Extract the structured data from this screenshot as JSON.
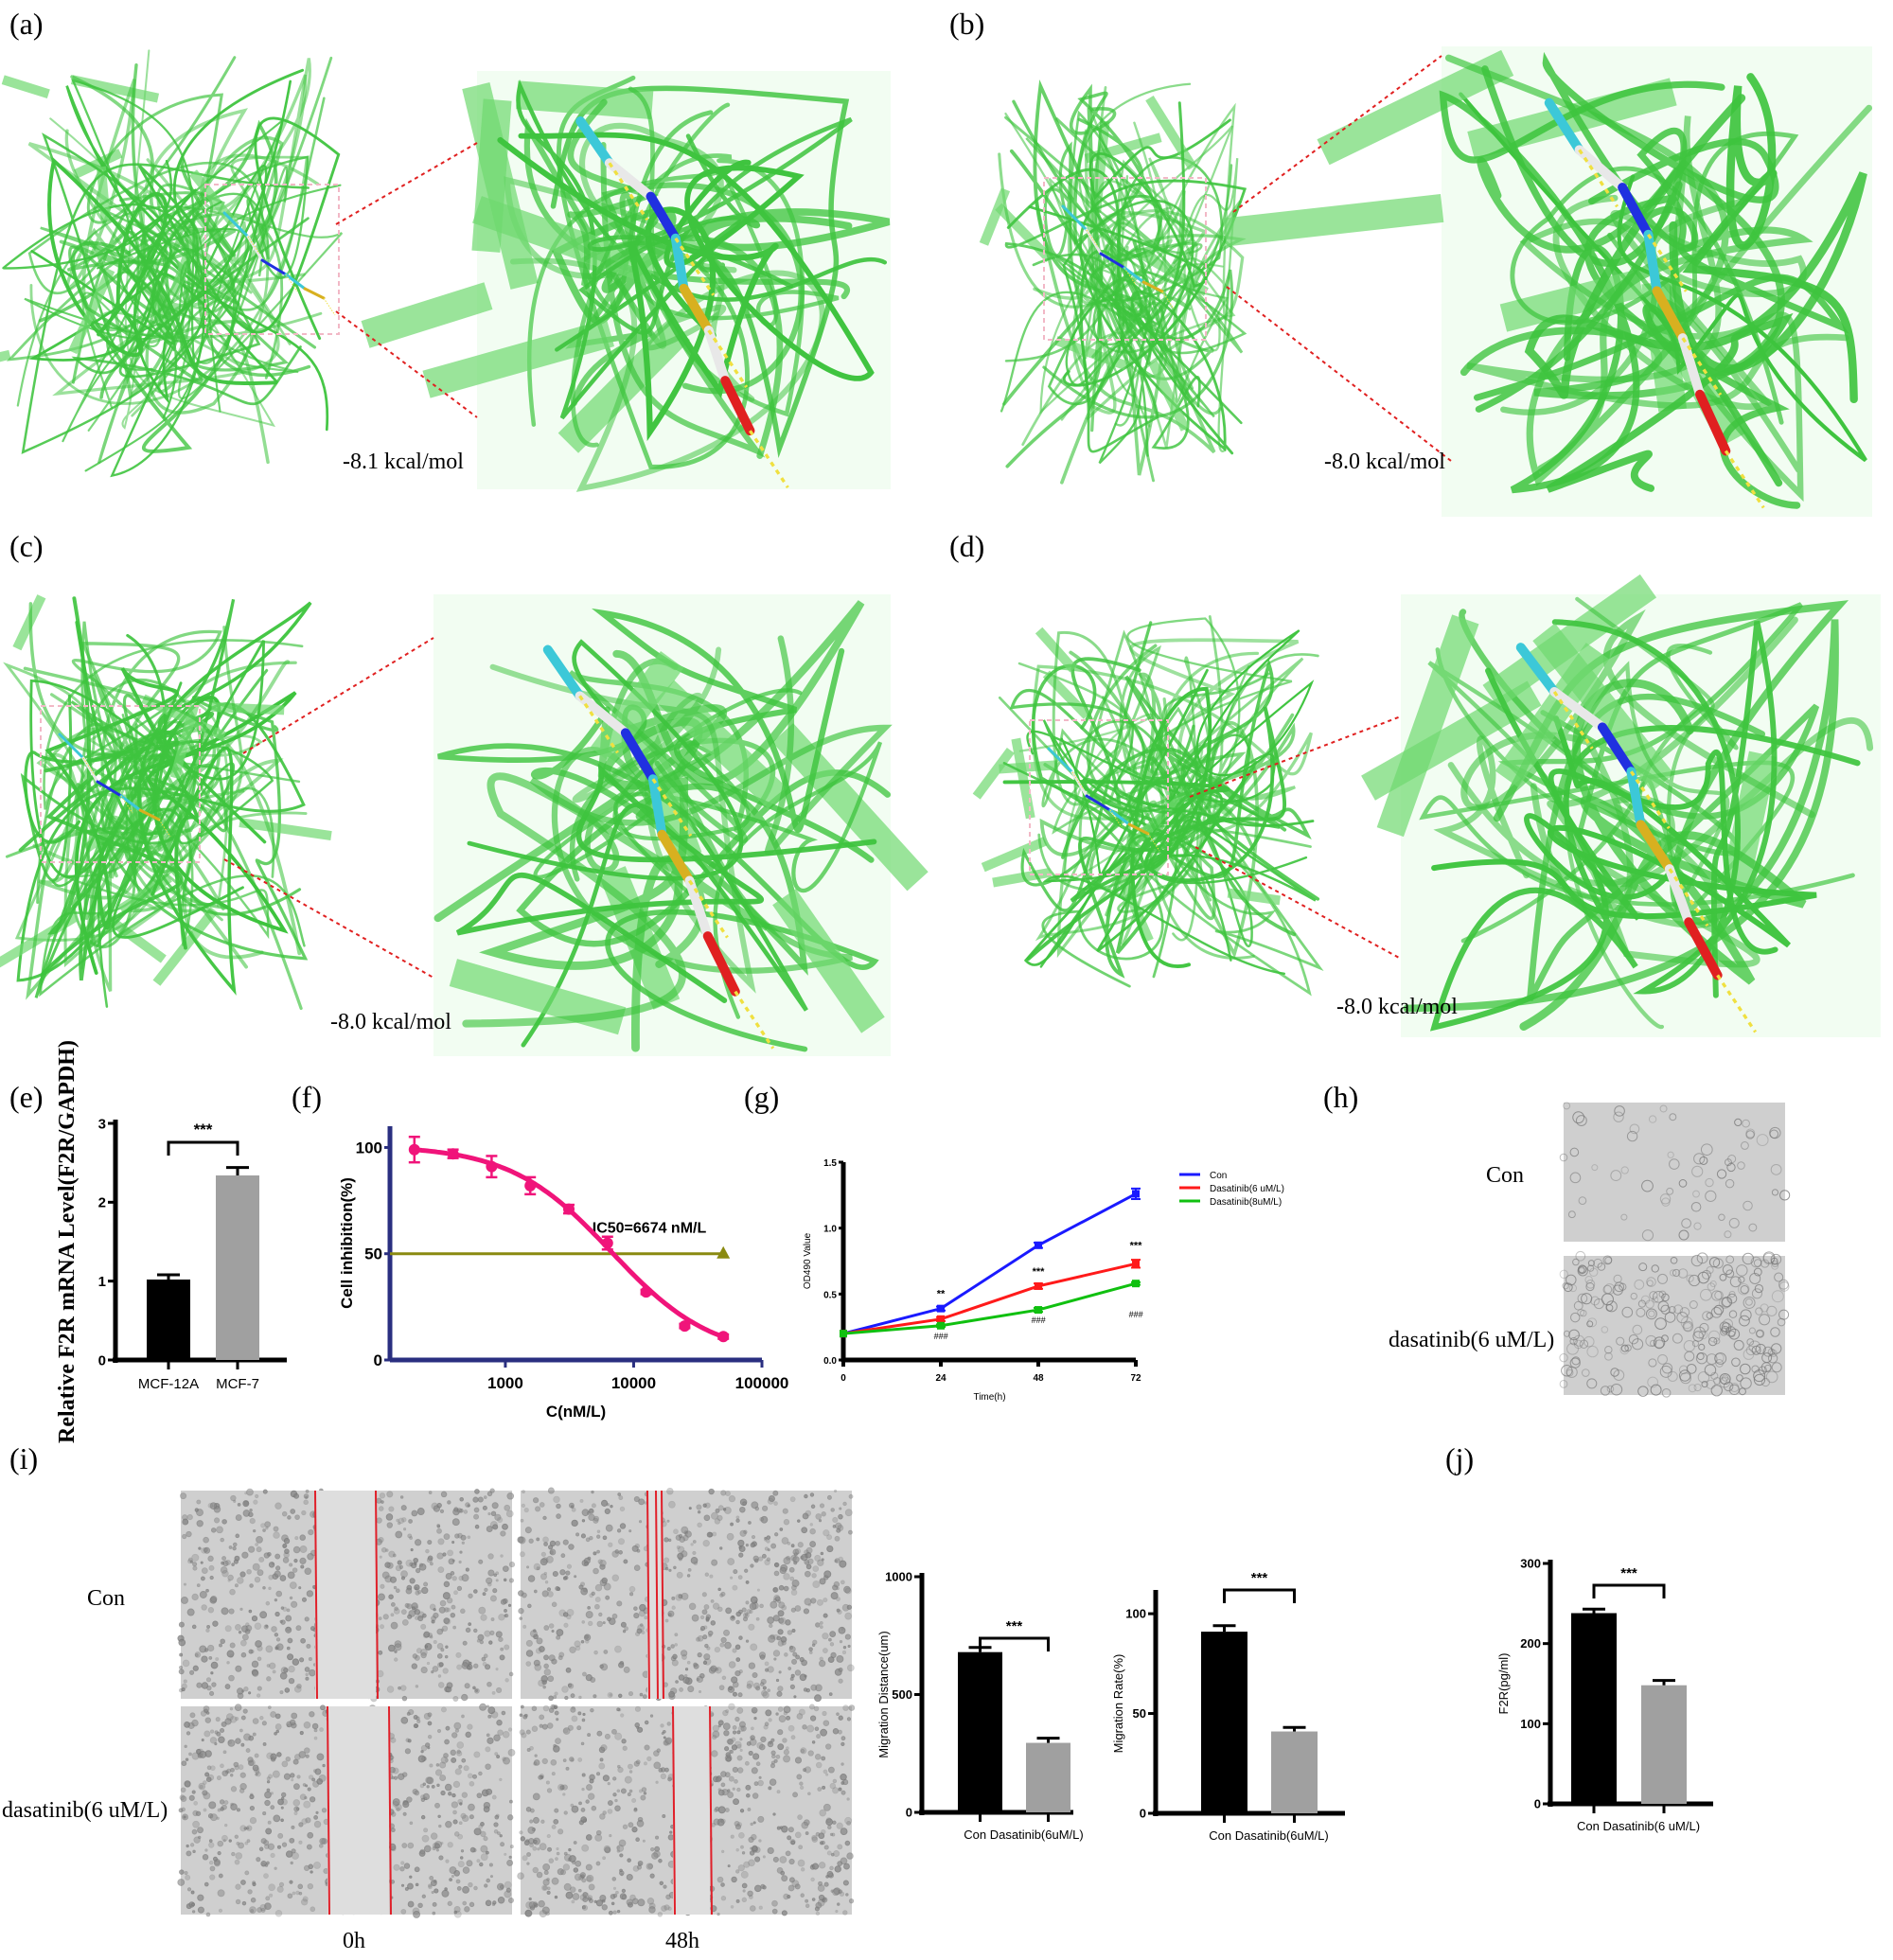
{
  "panels": {
    "a": {
      "label": "(a)",
      "energy": "-8.1 kcal/mol"
    },
    "b": {
      "label": "(b)",
      "energy": "-8.0 kcal/mol"
    },
    "c": {
      "label": "(c)",
      "energy": "-8.0 kcal/mol"
    },
    "d": {
      "label": "(d)",
      "energy": "-8.0 kcal/mol"
    },
    "e": {
      "label": "(e)"
    },
    "f": {
      "label": "(f)"
    },
    "g": {
      "label": "(g)"
    },
    "h": {
      "label": "(h)",
      "rows": [
        "Con",
        "dasatinib(6 uM/L)"
      ]
    },
    "i": {
      "label": "(i)",
      "rows": [
        "Con",
        "dasatinib(6 uM/L)"
      ],
      "cols": [
        "0h",
        "48h"
      ]
    },
    "j": {
      "label": "(j)"
    }
  },
  "colors": {
    "protein": "#3ec43e",
    "box": "#f2b8c6",
    "zoom_line": "#e02020",
    "wound_line": "#e0202a",
    "bar_con": "#000000",
    "bar_treated": "#a0a0a0",
    "ic50_curve": "#f0147a",
    "ic50_line": "#8a8a10",
    "axis_f": "#2a2f80",
    "con": "#1a1aff",
    "dasatinib6": "#ff1a1a",
    "dasatinib8": "#10c010"
  },
  "chart_data": [
    {
      "id": "e",
      "type": "bar",
      "categories": [
        "MCF-12A",
        "MCF-7"
      ],
      "values": [
        1.02,
        2.34
      ],
      "errors": [
        0.06,
        0.1
      ],
      "ylabel": "Relative  F2R mRNA Level(F2R/GAPDH)",
      "ylim": [
        0,
        3
      ],
      "yticks": [
        "0",
        "1",
        "2",
        "3"
      ],
      "significance": "***"
    },
    {
      "id": "f",
      "type": "line",
      "x": [
        195.3,
        390.6,
        781.3,
        1562.5,
        3125,
        6250,
        12500,
        25000,
        50000
      ],
      "y": [
        99,
        97,
        91,
        82,
        71,
        55,
        32,
        16,
        11
      ],
      "errors": [
        6,
        2,
        5,
        4,
        2,
        3,
        1,
        1,
        1
      ],
      "xscale": "log",
      "xlim": [
        126,
        100000
      ],
      "xticks": [
        "1000",
        "10000",
        "100000"
      ],
      "ylim": [
        0,
        110
      ],
      "yticks": [
        "0",
        "50",
        "100"
      ],
      "xlabel": "C(nM/L)",
      "ylabel": "Cell inhibition(%)",
      "reference_line": 50,
      "annotation": "IC50=6674 nM/L"
    },
    {
      "id": "g",
      "type": "line",
      "x": [
        0,
        24,
        48,
        72
      ],
      "xticks": [
        "0",
        "24",
        "48",
        "72"
      ],
      "ylim": [
        0,
        1.5
      ],
      "yticks": [
        "0.0",
        "0.5",
        "1.0",
        "1.5"
      ],
      "xlabel": "Time(h)",
      "ylabel": "OD490 Value",
      "legend": "right",
      "series": [
        {
          "name": "Con",
          "values": [
            0.2,
            0.39,
            0.87,
            1.26
          ],
          "errors": [
            0,
            0.015,
            0.02,
            0.04
          ]
        },
        {
          "name": "Dasatinib(6 uM/L)",
          "values": [
            0.2,
            0.31,
            0.56,
            0.73
          ],
          "errors": [
            0,
            0.015,
            0.02,
            0.03
          ]
        },
        {
          "name": "Dasatinib(8uM/L)",
          "values": [
            0.2,
            0.26,
            0.38,
            0.58
          ],
          "errors": [
            0,
            0.01,
            0.015,
            0.01
          ]
        }
      ],
      "annotations_star": [
        "**",
        "***",
        "***"
      ],
      "annotations_hash": [
        "###",
        "###",
        "###"
      ]
    },
    {
      "id": "i1",
      "type": "bar",
      "categories": [
        "Con",
        "Dasatinib(6uM/L)"
      ],
      "values": [
        680,
        295
      ],
      "errors": [
        20,
        20
      ],
      "ylabel": "Migration Distance(um)",
      "ylim": [
        0,
        1000
      ],
      "yticks": [
        "0",
        "500",
        "1000"
      ],
      "significance": "***"
    },
    {
      "id": "i2",
      "type": "bar",
      "categories": [
        "Con",
        "Dasatinib(6uM/L)"
      ],
      "values": [
        91,
        41
      ],
      "errors": [
        3,
        2
      ],
      "ylabel": "Migration Rate(%)",
      "ylim": [
        0,
        110
      ],
      "yticks": [
        "0",
        "50",
        "100"
      ],
      "significance": "***"
    },
    {
      "id": "j",
      "type": "bar",
      "categories": [
        "Con",
        "Dasatinib(6 uM/L)"
      ],
      "values": [
        238,
        148
      ],
      "errors": [
        5,
        6
      ],
      "ylabel": "F2R(pg/ml)",
      "ylim": [
        0,
        300
      ],
      "yticks": [
        "0",
        "100",
        "200",
        "300"
      ],
      "significance": "***"
    }
  ]
}
